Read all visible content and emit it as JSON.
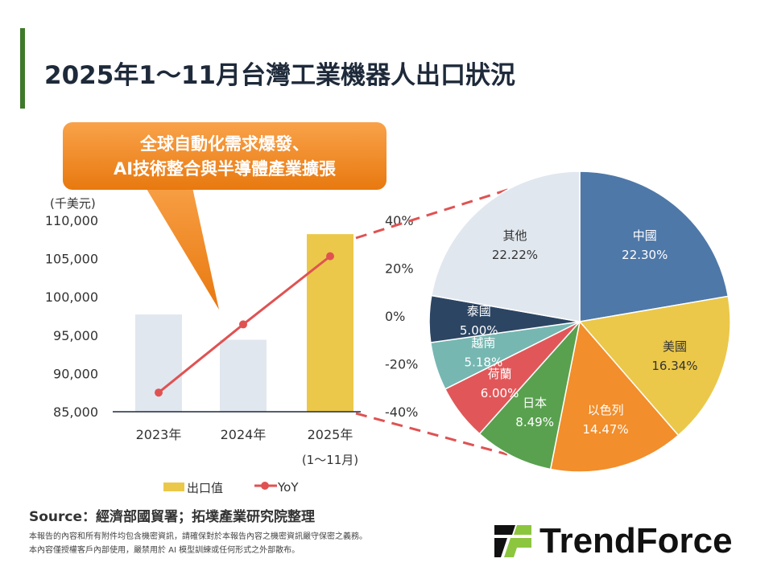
{
  "title": "2025年1～11月台灣工業機器人出口狀況",
  "callout": {
    "line1": "全球自動化需求爆發、",
    "line2": "AI技術整合與半導體產業擴張"
  },
  "source": "Source：經濟部國貿署；拓墣產業研究院整理",
  "notes": [
    "本報告的內容和所有附件均包含機密資訊，請確保對於本報告內容之機密資訊嚴守保密之義務。",
    "本內容僅授權客戶內部使用，嚴禁用於 AI 模型訓練或任何形式之外部散布。"
  ],
  "logo": "TrendForce",
  "chart_data": [
    {
      "type": "bar",
      "ylabel": "(千美元)",
      "ylim": [
        85000,
        110000
      ],
      "yticks": [
        "85,000",
        "90,000",
        "95,000",
        "100,000",
        "105,000",
        "110,000"
      ],
      "categories": [
        "2023年",
        "2024年",
        "2025年"
      ],
      "category_sub": [
        "",
        "",
        "(1～11月)"
      ],
      "series": [
        {
          "name": "出口值",
          "values": [
            97700,
            94400,
            108200
          ],
          "colors": [
            "#e1e7ef",
            "#e1e7ef",
            "#ebc84a"
          ]
        },
        {
          "name": "YoY",
          "type": "line",
          "axis": "right",
          "values": [
            -32,
            -3.5,
            25
          ],
          "color": "#e05252"
        }
      ],
      "y2lim": [
        -40,
        40
      ],
      "y2ticks": [
        "-40%",
        "-20%",
        "0%",
        "20%",
        "40%"
      ],
      "legend": "bottom"
    },
    {
      "type": "pie",
      "labels": [
        "中國",
        "美國",
        "以色列",
        "日本",
        "荷蘭",
        "越南",
        "泰國",
        "其他"
      ],
      "values": [
        22.3,
        16.34,
        14.47,
        8.49,
        6.0,
        5.18,
        5.0,
        22.22
      ],
      "value_labels": [
        "22.30%",
        "16.34%",
        "14.47%",
        "8.49%",
        "6.00%",
        "5.18%",
        "5.00%",
        "22.22%"
      ],
      "colors": [
        "#4e78a8",
        "#ebc84a",
        "#f28e2b",
        "#59a14f",
        "#e15759",
        "#76b7b2",
        "#2c4563",
        "#e1e7ef"
      ]
    }
  ]
}
